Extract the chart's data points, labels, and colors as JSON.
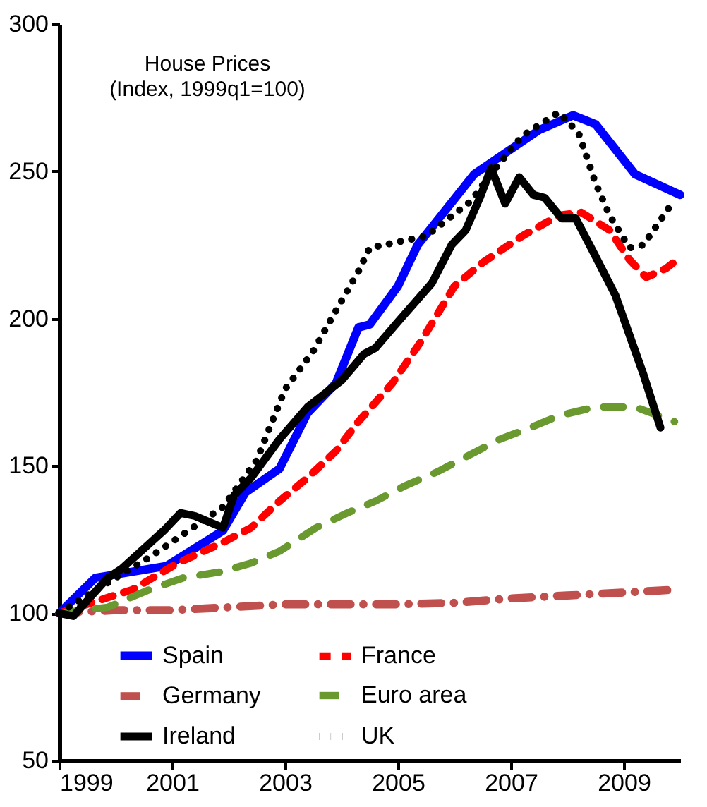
{
  "chart_data": {
    "type": "line",
    "title": "House Prices",
    "subtitle": "(Index, 1999q1=100)",
    "xlim": [
      1999,
      2010
    ],
    "xticks": [
      1999,
      2001,
      2003,
      2005,
      2007,
      2009
    ],
    "ylim": [
      50,
      300
    ],
    "yticks": [
      50,
      100,
      150,
      200,
      250,
      300
    ],
    "grid": false,
    "legend": "bottom",
    "marker": "none",
    "series": [
      {
        "name": "Spain",
        "color": "#0000ff",
        "line_style": "solid",
        "x": [
          1999,
          1999.64,
          2000.9,
          2001.9,
          2002.3,
          2002.9,
          2003.4,
          2003.9,
          2004.3,
          2004.5,
          2005.0,
          2005.35,
          2006.35,
          2007.5,
          2008.1,
          2008.5,
          2009.2,
          2010.0
        ],
        "values": [
          100,
          112,
          116,
          128,
          141,
          149,
          168,
          178,
          197,
          198,
          211,
          225,
          249,
          264,
          269,
          266,
          249,
          242
        ]
      },
      {
        "name": "France",
        "color": "#ff0000",
        "line_style": "dashed",
        "x": [
          1999,
          2000.3,
          2001.1,
          2001.9,
          2002.4,
          2002.9,
          2003.4,
          2003.9,
          2004.3,
          2004.9,
          2005.4,
          2006.0,
          2006.5,
          2007.2,
          2007.85,
          2008.25,
          2008.75,
          2009.1,
          2009.4,
          2009.75,
          2009.95
        ],
        "values": [
          100,
          108,
          117,
          124,
          129,
          138,
          146,
          155,
          165,
          178,
          192,
          211,
          219,
          228,
          235,
          236,
          230,
          220,
          214,
          217,
          220
        ]
      },
      {
        "name": "Germany",
        "color": "#c0504d",
        "line_style": "dashdot",
        "x": [
          1999,
          2000,
          2001,
          2002,
          2003,
          2004,
          2005,
          2006,
          2007,
          2008,
          2009,
          2009.95
        ],
        "values": [
          100,
          101,
          101,
          102,
          103,
          103,
          103,
          103.5,
          105,
          106,
          107,
          108
        ]
      },
      {
        "name": "Euro area",
        "color": "#6a9a2f",
        "line_style": "longdash",
        "x": [
          1999,
          1999.86,
          2000.6,
          2001.2,
          2001.85,
          2002.4,
          2002.9,
          2003.55,
          2004.1,
          2004.6,
          2005.1,
          2005.7,
          2006.2,
          2006.8,
          2007.35,
          2007.85,
          2008.5,
          2009.2,
          2009.9
        ],
        "values": [
          100,
          102,
          108,
          112,
          114,
          117,
          121,
          129,
          134,
          138,
          143,
          148,
          153,
          159,
          163,
          167,
          170,
          170,
          165
        ]
      },
      {
        "name": "Ireland",
        "color": "#000000",
        "line_style": "solid",
        "x": [
          1999,
          1999.25,
          1999.86,
          2000.1,
          2000.85,
          2001.15,
          2001.4,
          2001.9,
          2002.1,
          2002.4,
          2002.9,
          2003.4,
          2004.0,
          2004.4,
          2004.6,
          2005.05,
          2005.6,
          2005.95,
          2006.2,
          2006.45,
          2006.65,
          2006.9,
          2007.15,
          2007.4,
          2007.6,
          2007.9,
          2008.15,
          2008.45,
          2008.85,
          2009.35,
          2009.65
        ],
        "values": [
          100,
          99,
          112,
          115,
          128,
          134,
          133,
          129,
          140,
          146,
          159,
          170,
          179,
          188,
          190,
          200,
          212,
          225,
          230,
          241,
          251,
          239,
          248,
          242,
          241,
          234,
          234,
          223,
          208,
          181,
          163
        ]
      },
      {
        "name": "UK",
        "color": "#000000",
        "line_style": "dotted",
        "x": [
          1999,
          2000,
          2000.6,
          2001.9,
          2002.5,
          2003.0,
          2003.5,
          2004.0,
          2004.3,
          2004.5,
          2005.0,
          2005.5,
          2005.7,
          2006.3,
          2006.6,
          2007.2,
          2007.85,
          2008.2,
          2008.5,
          2008.75,
          2009.1,
          2009.35,
          2009.85
        ],
        "values": [
          100,
          112,
          119,
          136,
          152,
          176,
          189,
          206,
          216,
          224,
          226,
          228,
          231,
          240,
          248,
          262,
          270,
          263,
          246,
          235,
          224,
          225,
          239
        ]
      }
    ]
  }
}
